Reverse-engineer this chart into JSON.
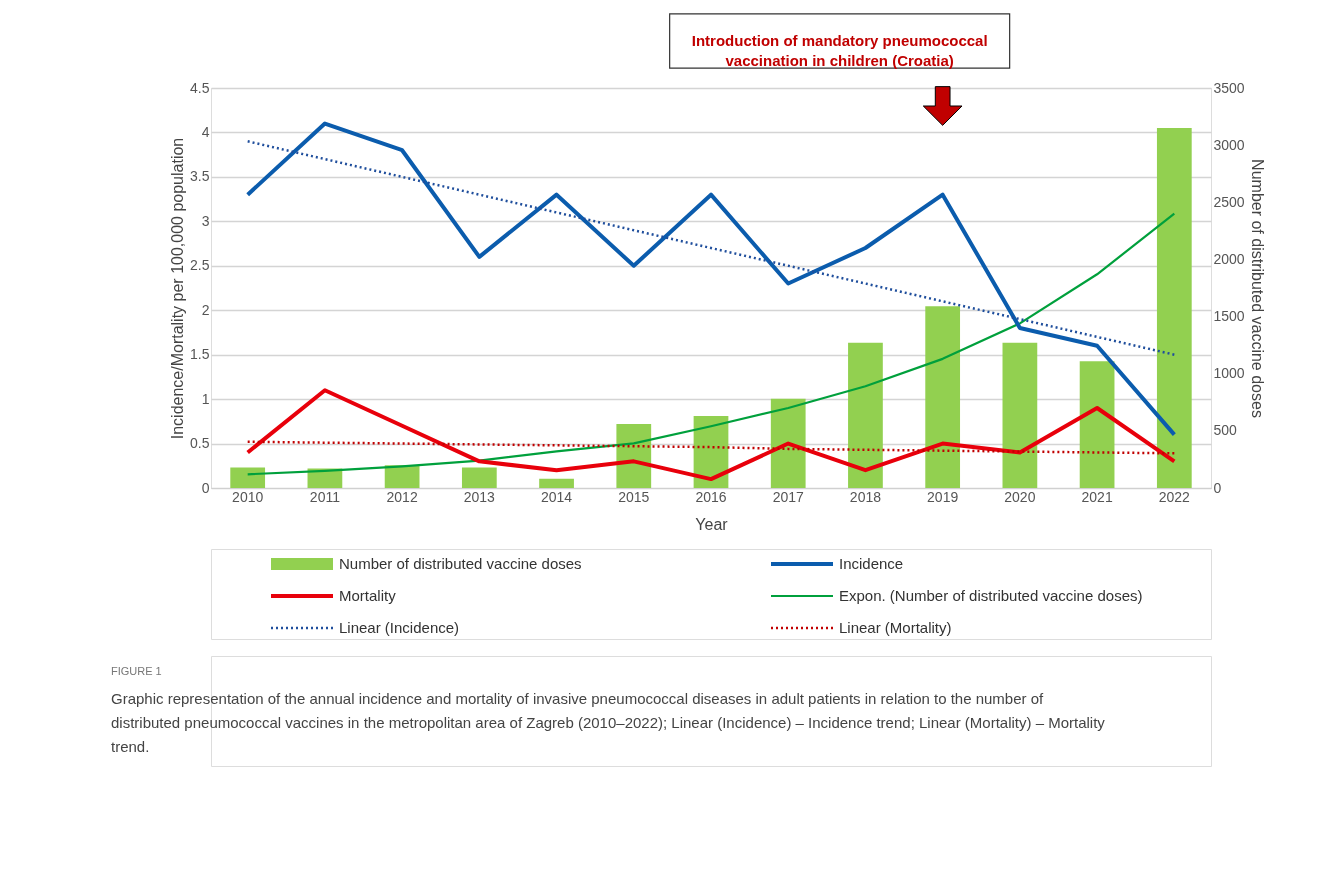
{
  "chart_data": {
    "type": "bar",
    "xlabel": "Year",
    "ylabel": "Incidence/Mortality per 100,000 population",
    "y2label": "Number of distributed vaccine doses",
    "categories": [
      "2010",
      "2011",
      "2012",
      "2013",
      "2014",
      "2015",
      "2016",
      "2017",
      "2018",
      "2019",
      "2020",
      "2021",
      "2022"
    ],
    "series": [
      {
        "name": "Number of distributed vaccine doses",
        "axis": "y2",
        "color": "#92d050",
        "values": [
          180,
          170,
          200,
          180,
          80,
          560,
          630,
          780,
          1270,
          1590,
          1270,
          1110,
          3150
        ]
      },
      {
        "name": "Incidence",
        "type": "line",
        "color": "#0b5cad",
        "line_style": "solid",
        "values": [
          3.3,
          4.1,
          3.8,
          2.6,
          3.3,
          2.5,
          3.3,
          2.3,
          2.7,
          3.3,
          1.8,
          1.6,
          0.6
        ]
      },
      {
        "name": "Mortality",
        "type": "line",
        "color": "#e8000b",
        "line_style": "solid",
        "values": [
          0.4,
          1.1,
          0.7,
          0.3,
          0.2,
          0.3,
          0.1,
          0.5,
          0.2,
          0.5,
          0.4,
          0.9,
          0.3
        ]
      },
      {
        "name": "Expon. (Number of distributed vaccine doses)",
        "type": "line",
        "axis": "y2",
        "color": "#00a03c",
        "line_style": "solid",
        "values": [
          120,
          150,
          190,
          240,
          320,
          390,
          540,
          700,
          890,
          1130,
          1440,
          1870,
          2400
        ]
      },
      {
        "name": "Linear (Incidence)",
        "type": "line",
        "color": "#1f4e9c",
        "line_style": "dotted",
        "values": [
          3.9,
          3.7,
          3.5,
          3.3,
          3.1,
          2.9,
          2.7,
          2.5,
          2.3,
          2.1,
          1.9,
          1.7,
          1.5
        ]
      },
      {
        "name": "Linear (Mortality)",
        "type": "line",
        "color": "#c00000",
        "line_style": "dotted",
        "values": [
          0.52,
          0.51,
          0.5,
          0.49,
          0.48,
          0.47,
          0.46,
          0.44,
          0.43,
          0.42,
          0.41,
          0.4,
          0.39
        ]
      }
    ],
    "ylim": [
      0,
      4.5
    ],
    "yticks": [
      0,
      0.5,
      1,
      1.5,
      2,
      2.5,
      3,
      3.5,
      4,
      4.5
    ],
    "y2lim": [
      0,
      3500
    ],
    "y2ticks": [
      0,
      500,
      1000,
      1500,
      2000,
      2500,
      3000,
      3500
    ],
    "grid": "y",
    "legend": "bottom",
    "annotations": [
      "Introduction of mandatory pneumococcal\nvaccination in children (Croatia)",
      "FIGURE 1",
      "Graphic representation of the annual incidence and mortality of invasive pneumococcal diseases in adult patients in relation to the number of\ndistributed pneumococcal vaccines in the metropolitan area of Zagreb (2010–2022); Linear (Incidence) – Incidence trend; Linear (Mortality) – Mortality\ntrend."
    ]
  }
}
